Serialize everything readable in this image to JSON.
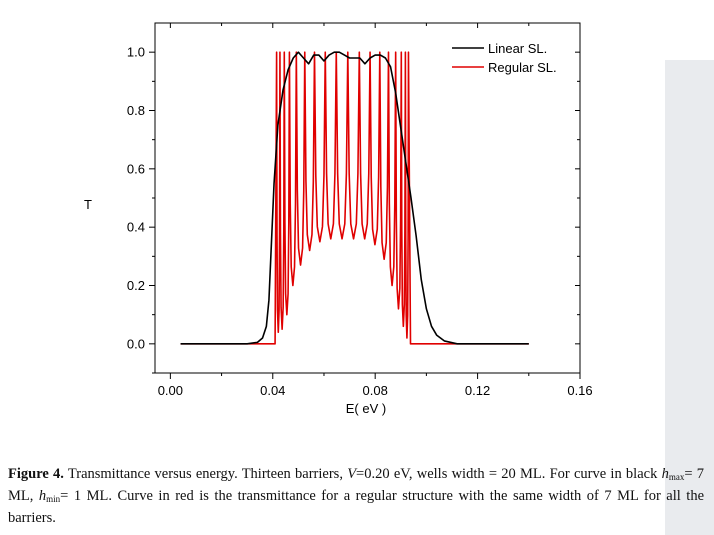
{
  "chart_data": {
    "type": "line",
    "title": "",
    "xlabel": "E( eV )",
    "ylabel": "T",
    "xlim": [
      -0.006,
      0.16
    ],
    "ylim": [
      -0.1,
      1.1
    ],
    "xticks": [
      0.0,
      0.04,
      0.08,
      0.12,
      0.16
    ],
    "xtick_labels": [
      "0.00",
      "0.04",
      "0.08",
      "0.12",
      "0.16"
    ],
    "yticks": [
      0.0,
      0.2,
      0.4,
      0.6,
      0.8,
      1.0
    ],
    "ytick_labels": [
      "0.0",
      "0.2",
      "0.4",
      "0.6",
      "0.8",
      "1.0"
    ],
    "grid": false,
    "legend_position": "top-right",
    "series": [
      {
        "name": "Linear SL.",
        "color": "#000000",
        "points": [
          [
            0.004,
            0.0
          ],
          [
            0.03,
            0.0
          ],
          [
            0.034,
            0.005
          ],
          [
            0.036,
            0.02
          ],
          [
            0.0375,
            0.06
          ],
          [
            0.0385,
            0.15
          ],
          [
            0.0395,
            0.35
          ],
          [
            0.0405,
            0.55
          ],
          [
            0.042,
            0.75
          ],
          [
            0.044,
            0.87
          ],
          [
            0.046,
            0.94
          ],
          [
            0.048,
            0.98
          ],
          [
            0.05,
            1.0
          ],
          [
            0.052,
            0.98
          ],
          [
            0.054,
            0.96
          ],
          [
            0.056,
            0.99
          ],
          [
            0.058,
            0.99
          ],
          [
            0.06,
            0.97
          ],
          [
            0.062,
            0.99
          ],
          [
            0.064,
            1.0
          ],
          [
            0.066,
            1.0
          ],
          [
            0.068,
            0.99
          ],
          [
            0.07,
            0.98
          ],
          [
            0.072,
            0.98
          ],
          [
            0.074,
            0.98
          ],
          [
            0.076,
            0.96
          ],
          [
            0.078,
            0.98
          ],
          [
            0.08,
            0.99
          ],
          [
            0.082,
            0.99
          ],
          [
            0.084,
            0.98
          ],
          [
            0.086,
            0.95
          ],
          [
            0.088,
            0.86
          ],
          [
            0.09,
            0.74
          ],
          [
            0.092,
            0.62
          ],
          [
            0.094,
            0.5
          ],
          [
            0.096,
            0.37
          ],
          [
            0.098,
            0.22
          ],
          [
            0.1,
            0.12
          ],
          [
            0.102,
            0.06
          ],
          [
            0.104,
            0.03
          ],
          [
            0.107,
            0.01
          ],
          [
            0.112,
            0.0
          ],
          [
            0.14,
            0.0
          ]
        ]
      },
      {
        "name": "Regular SL.",
        "color": "#e00000",
        "peaks": [
          0.0415,
          0.0428,
          0.0445,
          0.0465,
          0.0492,
          0.0525,
          0.0563,
          0.0605,
          0.0648,
          0.0693,
          0.0738,
          0.078,
          0.0818,
          0.0852,
          0.088,
          0.0902,
          0.0918,
          0.093
        ],
        "valleys": [
          0.04,
          0.05,
          0.1,
          0.2,
          0.27,
          0.32,
          0.35,
          0.36,
          0.36,
          0.36,
          0.36,
          0.34,
          0.29,
          0.2,
          0.12,
          0.06,
          0.02
        ],
        "x_start": 0.004,
        "x_end": 0.14
      }
    ]
  },
  "caption": {
    "label": "Figure 4.",
    "text1": " Transmittance versus energy. Thirteen barriers, ",
    "v_symbol": "V",
    "text2": "=0.20 eV, wells width = 20 ML. For curve in black ",
    "hmax_symbol": "h",
    "hmax_sub": "max",
    "text3": "= 7 ML, ",
    "hmin_symbol": "h",
    "hmin_sub": "min",
    "text4": "= 1 ML. Curve in red is the transmittance for a regular structure with the same width of 7 ML for all the barriers."
  }
}
